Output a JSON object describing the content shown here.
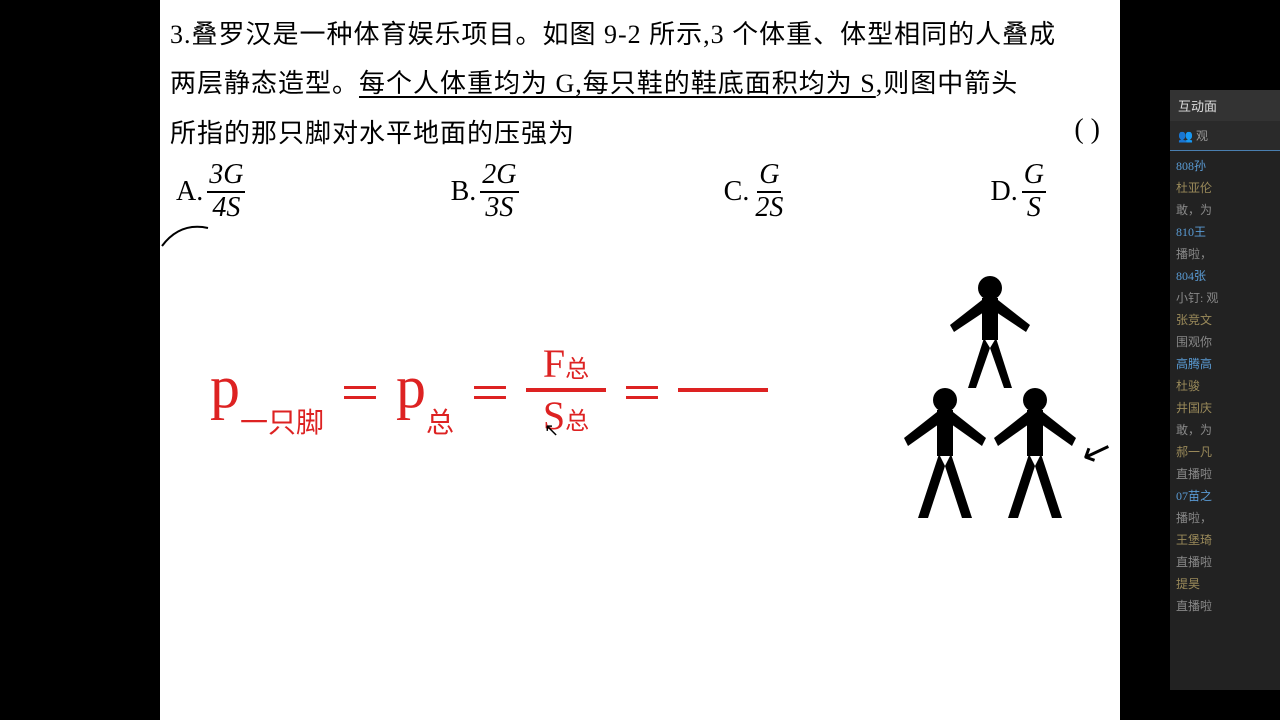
{
  "question": {
    "number": "3.",
    "line1": "叠罗汉是一种体育娱乐项目。如图 9-2 所示,3 个体重、体型相同的人叠成",
    "line2_pre": "两层静态造型。",
    "line2_underlined": "每个人体重均为 G,每只鞋的鞋底面积均为 S",
    "line2_post": ",则图中箭头",
    "line3": "所指的那只脚对水平地面的压强为",
    "paren": "(        )"
  },
  "options": {
    "A": {
      "label": "A.",
      "num": "3G",
      "den": "4S"
    },
    "B": {
      "label": "B.",
      "num": "2G",
      "den": "3S"
    },
    "C": {
      "label": "C.",
      "num": "G",
      "den": "2S"
    },
    "D": {
      "label": "D.",
      "num": "G",
      "den": "S"
    }
  },
  "formula": {
    "p1": "p",
    "sub1": "一只脚",
    "eq1": "＝",
    "p2": "p",
    "sub2": "总",
    "eq2": "＝",
    "frac_num": "F",
    "frac_num_sub": "总",
    "frac_den": "S",
    "frac_den_sub": "总",
    "eq3": "＝",
    "color": "#d22"
  },
  "sidebar": {
    "title": "互动面",
    "viewers": "👥 观",
    "chat": [
      {
        "name": "808孙",
        "color": "#5a9bd4"
      },
      {
        "name": "杜亚伦",
        "color": "#9a8a5a"
      },
      {
        "name": "敢，为",
        "color": "#888"
      },
      {
        "name": "810王",
        "color": "#5a9bd4"
      },
      {
        "name": "播啦，",
        "color": "#888"
      },
      {
        "name": "804张",
        "color": "#5a9bd4"
      },
      {
        "name": "小钉: 观",
        "color": "#888"
      },
      {
        "name": "张竞文",
        "color": "#9a8a5a"
      },
      {
        "name": "围观你",
        "color": "#888"
      },
      {
        "name": "高腾高",
        "color": "#5a9bd4"
      },
      {
        "name": "杜骏",
        "color": "#9a8a5a"
      },
      {
        "name": "井国庆",
        "color": "#9a8a5a"
      },
      {
        "name": "敢，为",
        "color": "#888"
      },
      {
        "name": "郝一凡",
        "color": "#9a8a5a"
      },
      {
        "name": "直播啦",
        "color": "#888"
      },
      {
        "name": "07苗之",
        "color": "#5a9bd4"
      },
      {
        "name": "播啦，",
        "color": "#888"
      },
      {
        "name": "王堡琦",
        "color": "#9a8a5a"
      },
      {
        "name": "直播啦",
        "color": "#888"
      },
      {
        "name": "提昊",
        "color": "#9a8a5a"
      },
      {
        "name": "直播啦",
        "color": "#888"
      }
    ]
  }
}
